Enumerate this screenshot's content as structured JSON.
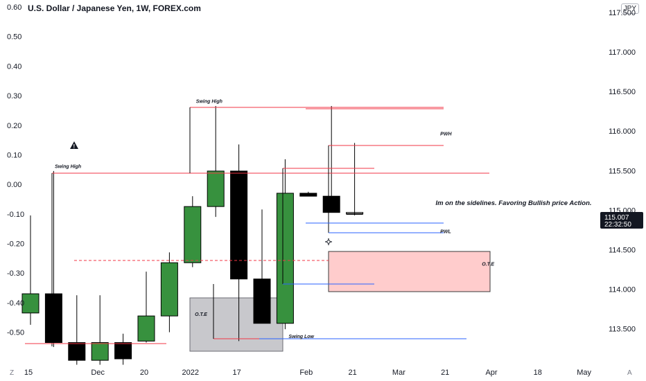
{
  "title": "U.S. Dollar / Japanese Yen, 1W, FOREX.com",
  "currency_badge": "JPY",
  "price_badge": {
    "price": "115.007",
    "countdown": "22:32:50"
  },
  "corner_left": "Z",
  "corner_right": "A",
  "colors": {
    "bull": "#37913e",
    "bear": "#000000",
    "red_line": "#f23645",
    "blue_line": "#2962ff",
    "ote_gray": "#c8c8cc",
    "ote_pink": "#ffcccc"
  },
  "chart_data": {
    "type": "candlestick",
    "left_axis": {
      "ylim": [
        -0.59,
        0.6
      ],
      "ticks": [
        "0.60",
        "0.50",
        "0.40",
        "0.30",
        "0.20",
        "0.10",
        "0.00",
        "-0.10",
        "-0.20",
        "-0.30",
        "-0.40",
        "-0.50"
      ],
      "tick_values": [
        0.6,
        0.5,
        0.4,
        0.3,
        0.2,
        0.1,
        0.0,
        -0.1,
        -0.2,
        -0.3,
        -0.4,
        -0.5
      ]
    },
    "right_axis": {
      "ylim": [
        113.12,
        117.57
      ],
      "ticks": [
        "117.500",
        "117.000",
        "116.500",
        "116.000",
        "115.500",
        "115.000",
        "114.500",
        "114.000",
        "113.500"
      ],
      "tick_values": [
        117.5,
        117.0,
        116.5,
        116.0,
        115.5,
        115.0,
        114.5,
        114.0,
        113.5
      ]
    },
    "x_ticks": [
      "15",
      "Dec",
      "20",
      "2022",
      "17",
      "Feb",
      "21",
      "Mar",
      "21",
      "Apr",
      "18",
      "May"
    ],
    "x_tick_weeks": [
      0,
      3,
      5,
      7,
      9,
      12,
      14,
      16,
      18,
      20,
      22,
      24
    ],
    "candles": [
      {
        "week": 0,
        "open": -0.435,
        "high": -0.105,
        "low": -0.475,
        "close": -0.37
      },
      {
        "week": 1,
        "open": -0.37,
        "high": 0.045,
        "low": -0.55,
        "close": -0.535
      },
      {
        "week": 2,
        "open": -0.535,
        "high": -0.375,
        "low": -0.61,
        "close": -0.595
      },
      {
        "week": 3,
        "open": -0.595,
        "high": -0.375,
        "low": -0.61,
        "close": -0.535
      },
      {
        "week": 4,
        "open": -0.535,
        "high": -0.505,
        "low": -0.61,
        "close": -0.59
      },
      {
        "week": 5,
        "open": -0.53,
        "high": -0.295,
        "low": -0.535,
        "close": -0.445
      },
      {
        "week": 6,
        "open": -0.445,
        "high": -0.23,
        "low": -0.5,
        "close": -0.265
      },
      {
        "week": 7,
        "open": -0.265,
        "high": -0.04,
        "low": -0.28,
        "close": -0.075
      },
      {
        "week": 8,
        "open": -0.075,
        "high": 0.265,
        "low": -0.11,
        "close": 0.045
      },
      {
        "week": 9,
        "open": 0.045,
        "high": 0.135,
        "low": -0.53,
        "close": -0.32
      },
      {
        "week": 10,
        "open": -0.32,
        "high": -0.085,
        "low": -0.47,
        "close": -0.47
      },
      {
        "week": 11,
        "open": -0.47,
        "high": 0.085,
        "low": -0.49,
        "close": -0.03
      },
      {
        "week": 12,
        "open": -0.03,
        "high": -0.025,
        "low": -0.04,
        "close": -0.04
      },
      {
        "week": 13,
        "open": -0.04,
        "high": 0.265,
        "low": -0.095,
        "close": -0.095
      },
      {
        "week": 14,
        "open": -0.095,
        "high": 0.14,
        "low": -0.105,
        "close": -0.1
      }
    ],
    "annotations": [
      {
        "kind": "label",
        "text": "Swing High",
        "week": 1.05,
        "value": 0.055
      },
      {
        "kind": "label",
        "text": "Swing High",
        "week": 7.15,
        "value": 0.275
      },
      {
        "kind": "label",
        "text": "PWH",
        "week": 17.7,
        "value": 0.165
      },
      {
        "kind": "label",
        "text": "PWL",
        "week": 17.7,
        "value": -0.165
      },
      {
        "kind": "label",
        "text": "Swing Low",
        "week": 11.15,
        "value": -0.52
      },
      {
        "kind": "label",
        "text": "O.T.E",
        "week": 7.1,
        "value": -0.445
      },
      {
        "kind": "label",
        "text": "O.T.E",
        "week": 19.5,
        "value": -0.275
      },
      {
        "kind": "note",
        "text": "Im on the sidelines. Favoring Bullish price Action.",
        "week": 17.5,
        "value": -0.07
      }
    ],
    "grid": false,
    "legend": "none"
  }
}
